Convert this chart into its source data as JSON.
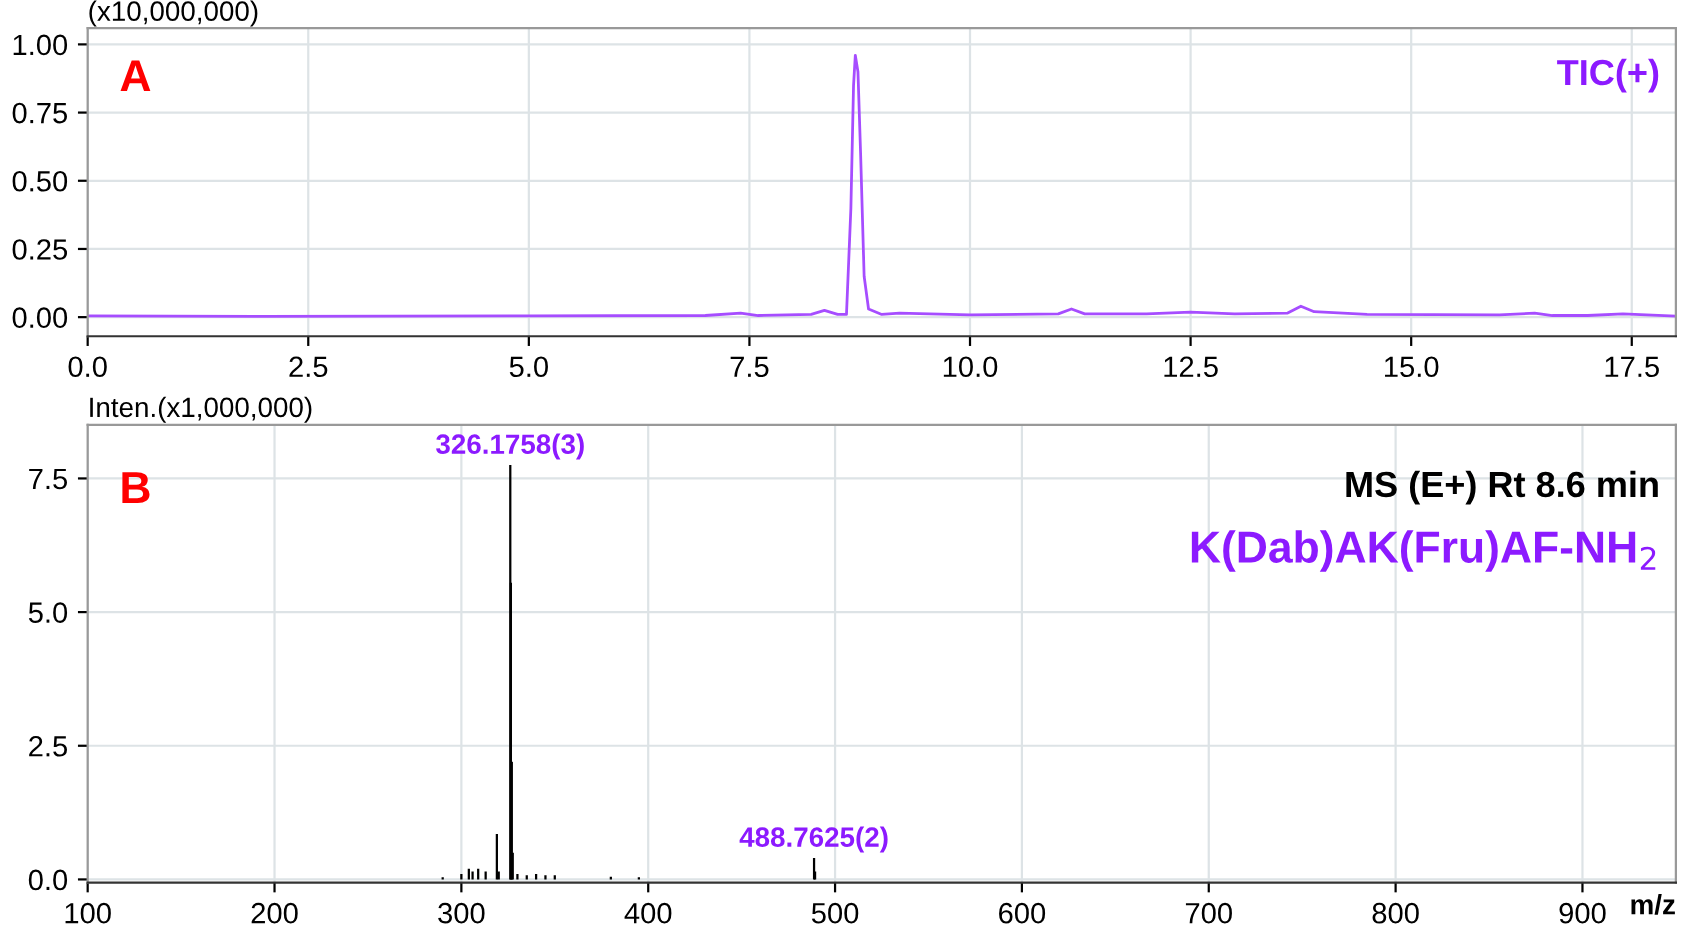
{
  "chart_data": [
    {
      "type": "line",
      "ylabel": "(x10,000,000)",
      "xlim": [
        0,
        18
      ],
      "ylim": [
        -0.07,
        1.06
      ],
      "xticks": [
        {
          "value": 0,
          "label": "0.0"
        },
        2.5,
        {
          "value": 5,
          "label": "5.0"
        },
        7.5,
        {
          "value": 10,
          "label": "10.0"
        },
        12.5,
        {
          "value": 15,
          "label": "15.0"
        },
        17.5
      ],
      "yticks": [
        {
          "value": 0,
          "label": "0.00"
        },
        0.25,
        {
          "value": 0.5,
          "label": "0.50"
        },
        0.75,
        {
          "value": 1,
          "label": "1.00"
        }
      ],
      "grid": true,
      "annotations": [
        "A",
        "TIC(+)"
      ],
      "series": [
        {
          "color": "#a64dff",
          "x": [
            0,
            2,
            5,
            7,
            7.4,
            7.6,
            8.2,
            8.35,
            8.5,
            8.6,
            8.65,
            8.68,
            8.7,
            8.73,
            8.76,
            8.8,
            8.85,
            9.0,
            9.2,
            10,
            11,
            11.15,
            11.3,
            12,
            12.5,
            13,
            13.6,
            13.75,
            13.9,
            14.5,
            16,
            16.4,
            16.6,
            17,
            17.4,
            18
          ],
          "values": [
            0.005,
            0.003,
            0.005,
            0.006,
            0.015,
            0.006,
            0.01,
            0.025,
            0.01,
            0.01,
            0.4,
            0.85,
            0.96,
            0.9,
            0.6,
            0.15,
            0.03,
            0.01,
            0.015,
            0.008,
            0.012,
            0.03,
            0.012,
            0.012,
            0.018,
            0.012,
            0.015,
            0.04,
            0.02,
            0.01,
            0.008,
            0.015,
            0.006,
            0.006,
            0.012,
            0.004
          ]
        }
      ]
    },
    {
      "type": "bar",
      "ylabel": "Inten.(x1,000,000)",
      "xlabel": "m/z",
      "xlim": [
        100,
        950
      ],
      "ylim": [
        -0.06,
        8.5
      ],
      "xticks": [
        100,
        200,
        300,
        400,
        500,
        600,
        700,
        800,
        900
      ],
      "yticks": [
        {
          "value": 0,
          "label": "0.0"
        },
        2.5,
        {
          "value": 5,
          "label": "5.0"
        },
        7.5
      ],
      "grid": true,
      "annotations": [
        "B",
        "MS (E+) Rt 8.6 min",
        "K(Dab)AK(Fru)AF-NH$_{2}$",
        {
          "text": "326.1758(3)",
          "x": 326.18,
          "y": 7.75
        },
        {
          "text": "488.7625(2)",
          "x": 488.76,
          "y": 0.4
        }
      ],
      "series": [
        {
          "color": "#000000",
          "x": [
            290,
            300,
            304,
            306,
            309,
            313,
            319,
            320,
            326.18,
            326.5,
            327,
            327.5,
            330,
            335,
            340,
            345,
            350,
            380,
            395,
            488.76,
            489.3
          ],
          "values": [
            0.04,
            0.1,
            0.2,
            0.15,
            0.2,
            0.15,
            0.85,
            0.15,
            7.75,
            5.55,
            2.2,
            0.5,
            0.1,
            0.08,
            0.1,
            0.08,
            0.08,
            0.05,
            0.04,
            0.4,
            0.15
          ]
        }
      ]
    }
  ]
}
